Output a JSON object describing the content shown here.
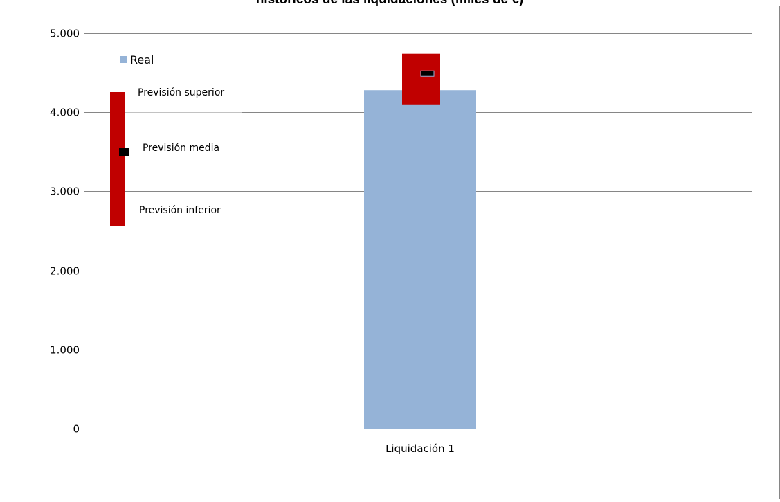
{
  "chart_data": {
    "type": "bar",
    "title": "históricos de las liquidaciones (miles de €)",
    "categories": [
      "Liquidación 1"
    ],
    "series": [
      {
        "name": "Real",
        "values": [
          4280
        ]
      }
    ],
    "forecast": {
      "lower": 4100,
      "mean": 4490,
      "upper": 4740
    },
    "ylim": [
      0,
      5000
    ],
    "yticks": [
      0,
      1000,
      2000,
      3000,
      4000,
      5000
    ],
    "ytick_labels": [
      "0",
      "1.000",
      "2.000",
      "3.000",
      "4.000",
      "5.000"
    ],
    "grid": true,
    "legend": {
      "position": "top-left",
      "real_label": "Real",
      "upper_label": "Previsión superior",
      "mean_label": "Previsión media",
      "lower_label": "Previsión inferior"
    },
    "colors": {
      "real": "#95B3D7",
      "forecast": "#C00000",
      "mean_marker": "#000000",
      "grid": "#868686",
      "axis": "#868686"
    }
  }
}
